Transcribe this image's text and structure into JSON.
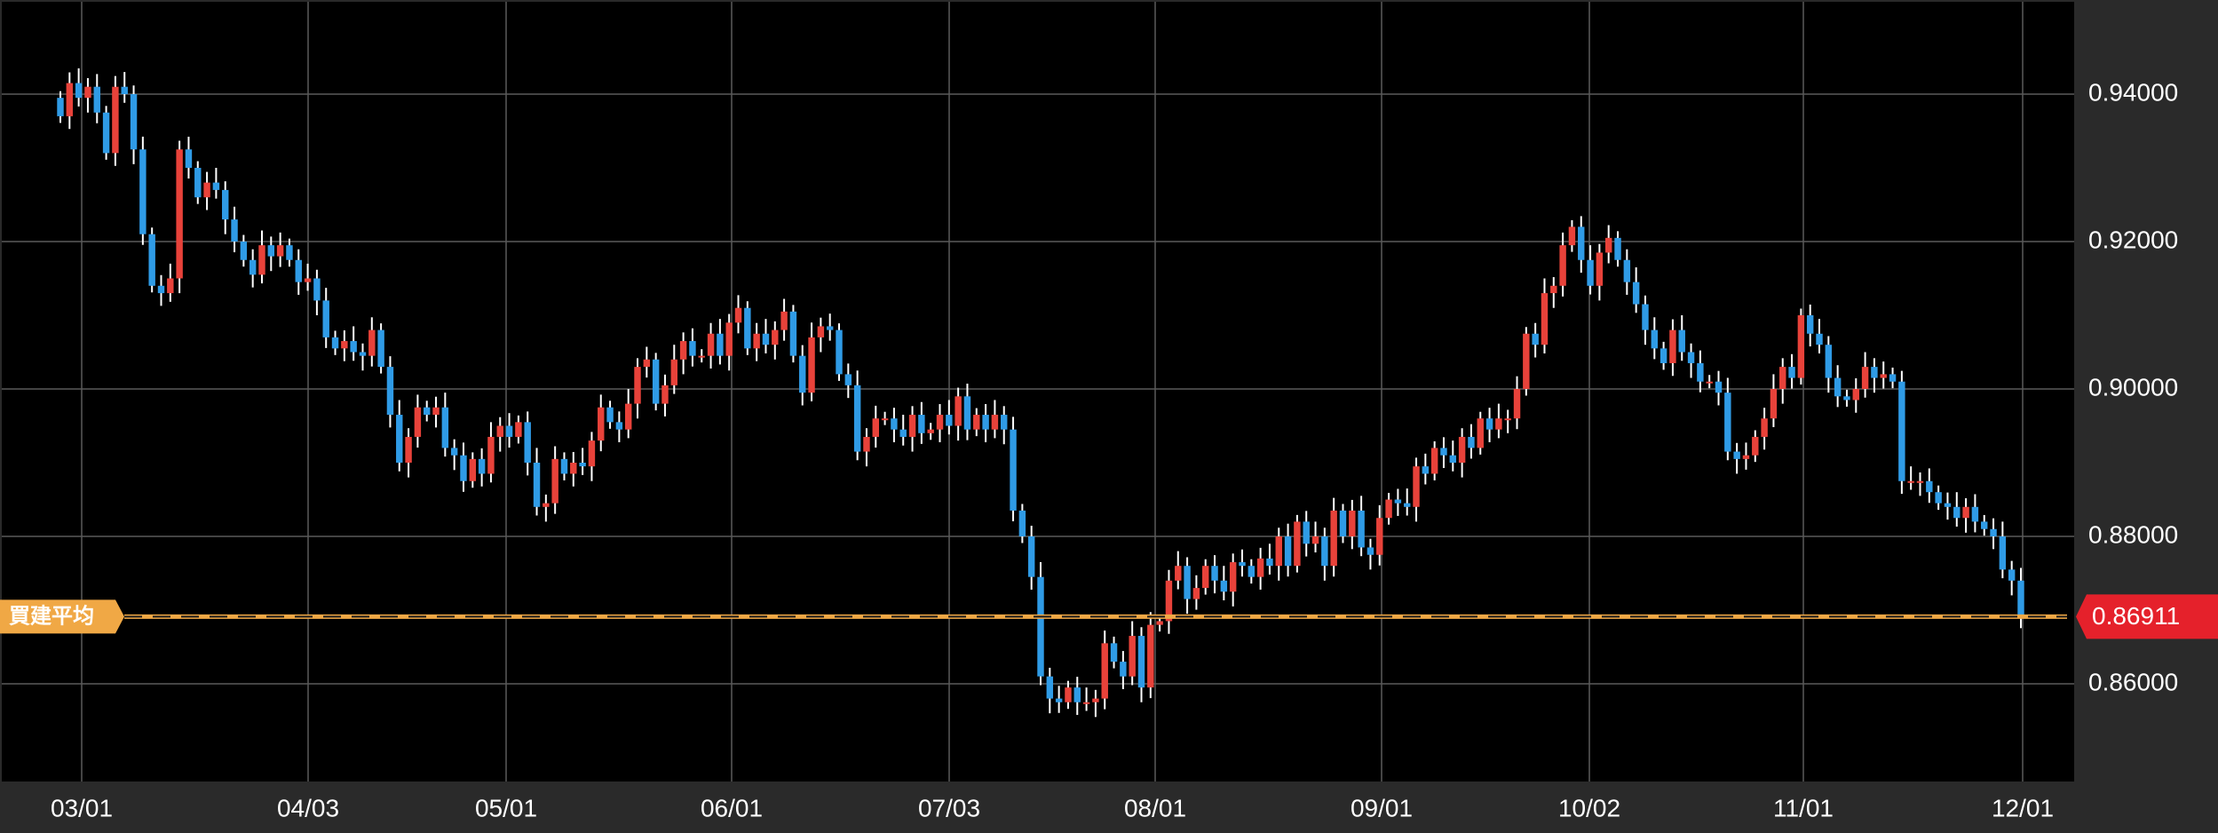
{
  "chart_data": {
    "type": "candlestick",
    "colors": {
      "background": "#000000",
      "frame": "#2a2a2a",
      "grid": "#5a5a5a",
      "up": "#e8423a",
      "down": "#2f9be6",
      "wick": "#ffffff",
      "average_line": "#f0a845",
      "current_price": "#e5212b"
    },
    "ylim": [
      0.8485,
      0.9475
    ],
    "y_ticks": [
      "0.94000",
      "0.92000",
      "0.90000",
      "0.88000",
      "0.86000"
    ],
    "x_ticks": [
      "03/01",
      "04/03",
      "05/01",
      "06/01",
      "07/03",
      "08/01",
      "09/01",
      "10/02",
      "11/01",
      "12/01"
    ],
    "average_price": {
      "label": "買建平均",
      "value": 0.86911
    },
    "current_price": {
      "label": "0.86911",
      "value": 0.86911
    },
    "closes": [
      0.937,
      0.9415,
      0.9395,
      0.941,
      0.9375,
      0.932,
      0.941,
      0.94,
      0.9325,
      0.921,
      0.914,
      0.913,
      0.915,
      0.9325,
      0.93,
      0.926,
      0.928,
      0.927,
      0.923,
      0.92,
      0.9175,
      0.9155,
      0.9195,
      0.918,
      0.9195,
      0.9175,
      0.9145,
      0.915,
      0.912,
      0.907,
      0.9055,
      0.9065,
      0.905,
      0.9045,
      0.908,
      0.903,
      0.8965,
      0.89,
      0.8935,
      0.8975,
      0.8965,
      0.8975,
      0.892,
      0.891,
      0.8875,
      0.8905,
      0.8885,
      0.8935,
      0.895,
      0.8935,
      0.8955,
      0.89,
      0.884,
      0.8845,
      0.8905,
      0.8885,
      0.89,
      0.8895,
      0.893,
      0.8975,
      0.8955,
      0.8945,
      0.898,
      0.903,
      0.904,
      0.898,
      0.9005,
      0.904,
      0.9065,
      0.9045,
      0.9045,
      0.9075,
      0.9045,
      0.909,
      0.911,
      0.9055,
      0.9075,
      0.906,
      0.908,
      0.9105,
      0.9045,
      0.8995,
      0.907,
      0.9085,
      0.908,
      0.902,
      0.9005,
      0.8915,
      0.8935,
      0.896,
      0.896,
      0.8945,
      0.8935,
      0.8965,
      0.894,
      0.8945,
      0.8965,
      0.895,
      0.899,
      0.8945,
      0.8965,
      0.8945,
      0.8965,
      0.8945,
      0.8835,
      0.88,
      0.8745,
      0.861,
      0.858,
      0.8575,
      0.8595,
      0.8575,
      0.8575,
      0.858,
      0.8655,
      0.863,
      0.861,
      0.8665,
      0.8595,
      0.868,
      0.8685,
      0.874,
      0.876,
      0.8715,
      0.873,
      0.876,
      0.874,
      0.8725,
      0.8765,
      0.876,
      0.8745,
      0.877,
      0.876,
      0.88,
      0.876,
      0.882,
      0.879,
      0.88,
      0.876,
      0.8835,
      0.88,
      0.8835,
      0.8785,
      0.8775,
      0.8825,
      0.885,
      0.8845,
      0.884,
      0.8895,
      0.8885,
      0.892,
      0.891,
      0.89,
      0.8935,
      0.892,
      0.896,
      0.8945,
      0.896,
      0.896,
      0.9,
      0.9075,
      0.906,
      0.913,
      0.914,
      0.9195,
      0.922,
      0.9175,
      0.914,
      0.9185,
      0.9205,
      0.9175,
      0.9145,
      0.9115,
      0.908,
      0.9055,
      0.9035,
      0.908,
      0.905,
      0.9035,
      0.901,
      0.901,
      0.8995,
      0.8915,
      0.8905,
      0.891,
      0.8935,
      0.896,
      0.9,
      0.903,
      0.9015,
      0.91,
      0.9075,
      0.906,
      0.9015,
      0.899,
      0.8985,
      0.9,
      0.903,
      0.9015,
      0.902,
      0.901,
      0.8875,
      0.8875,
      0.8875,
      0.886,
      0.8845,
      0.884,
      0.8825,
      0.884,
      0.882,
      0.881,
      0.88,
      0.8755,
      0.874,
      0.869
    ]
  }
}
